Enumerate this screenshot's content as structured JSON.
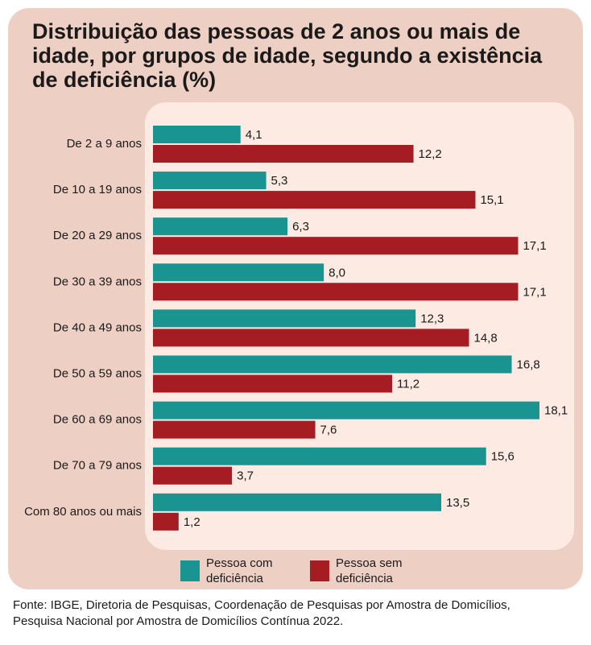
{
  "title": "Distribuição das pessoas de 2 anos ou mais de idade, por grupos de idade, segundo a existência de deficiência (%)",
  "legend": [
    {
      "label": "Pessoa com deficiência",
      "color": "#1a9490"
    },
    {
      "label": "Pessoa sem deficiência",
      "color": "#a51d23"
    }
  ],
  "source_lines": [
    "Fonte: IBGE, Diretoria de Pesquisas, Coordenação de Pesquisas por Amostra de Domicílios,",
    "Pesquisa Nacional por Amostra de Domicílios Contínua 2022."
  ],
  "chart_data": {
    "type": "bar",
    "orientation": "horizontal",
    "title": "Distribuição das pessoas de 2 anos ou mais de idade, por grupos de idade, segundo a existência de deficiência (%)",
    "categories": [
      "De 2 a 9 anos",
      "De 10 a 19 anos",
      "De 20 a 29 anos",
      "De 30 a 39 anos",
      "De 40 a 49 anos",
      "De 50 a 59 anos",
      "De 60 a 69 anos",
      "De 70 a 79 anos",
      "Com 80 anos ou mais"
    ],
    "series": [
      {
        "name": "Pessoa com deficiência",
        "color": "#1a9490",
        "values": [
          4.1,
          5.3,
          6.3,
          8.0,
          12.3,
          16.8,
          18.1,
          15.6,
          13.5
        ]
      },
      {
        "name": "Pessoa sem deficiência",
        "color": "#a51d23",
        "values": [
          12.2,
          15.1,
          17.1,
          17.1,
          14.8,
          11.2,
          7.6,
          3.7,
          1.2
        ]
      }
    ],
    "value_labels": [
      [
        "4,1",
        "5,3",
        "6,3",
        "8,0",
        "12,3",
        "16,8",
        "18,1",
        "15,6",
        "13,5"
      ],
      [
        "12,2",
        "15,1",
        "17,1",
        "17,1",
        "14,8",
        "11,2",
        "7,6",
        "3,7",
        "1,2"
      ]
    ],
    "xlim": [
      0,
      18.1
    ],
    "grid": false,
    "legend_position": "bottom"
  }
}
